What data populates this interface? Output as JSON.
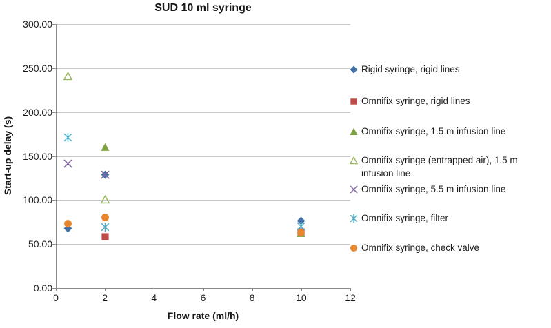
{
  "title": "SUD 10 ml syringe",
  "chart_data": {
    "type": "scatter",
    "title": "SUD 10 ml syringe",
    "xlabel": "Flow rate (ml/h)",
    "ylabel": "Start-up delay (s)",
    "xlim": [
      0,
      12
    ],
    "ylim": [
      0,
      300
    ],
    "x_ticks": [
      0,
      2,
      4,
      6,
      8,
      10,
      12
    ],
    "y_ticks": [
      0,
      50,
      100,
      150,
      200,
      250,
      300
    ],
    "y_tick_format": "2dp",
    "grid": "horizontal",
    "legend_position": "right",
    "series": [
      {
        "name": "Rigid syringe, rigid lines",
        "marker": "diamond",
        "color": "#4573A7",
        "points": [
          [
            0.5,
            68
          ],
          [
            2,
            129
          ],
          [
            10,
            76
          ]
        ]
      },
      {
        "name": "Omnifix syringe, rigid lines",
        "marker": "square",
        "color": "#BE4B48",
        "points": [
          [
            2,
            58
          ],
          [
            10,
            64
          ]
        ]
      },
      {
        "name": "Omnifix syringe, 1.5 m infusion line",
        "marker": "triangle",
        "color": "#7EA13F",
        "points": [
          [
            2,
            160
          ],
          [
            10,
            62
          ]
        ]
      },
      {
        "name": "Omnifix syringe (entrapped air), 1.5 m infusion line",
        "marker": "triangle-open",
        "color": "#9ABB59",
        "points": [
          [
            0.5,
            241
          ],
          [
            2,
            101
          ]
        ]
      },
      {
        "name": "Omnifix syringe, 5.5 m infusion line",
        "marker": "x",
        "color": "#8064A2",
        "points": [
          [
            0.5,
            141
          ],
          [
            2,
            129
          ]
        ]
      },
      {
        "name": "Omnifix syringe, filter",
        "marker": "asterisk",
        "color": "#4BACC6",
        "points": [
          [
            0.5,
            171
          ],
          [
            2,
            69
          ],
          [
            10,
            70
          ]
        ]
      },
      {
        "name": "Omnifix syringe, check valve",
        "marker": "circle",
        "color": "#E8852D",
        "points": [
          [
            0.5,
            73
          ],
          [
            2,
            80
          ],
          [
            10,
            63
          ]
        ]
      }
    ]
  }
}
